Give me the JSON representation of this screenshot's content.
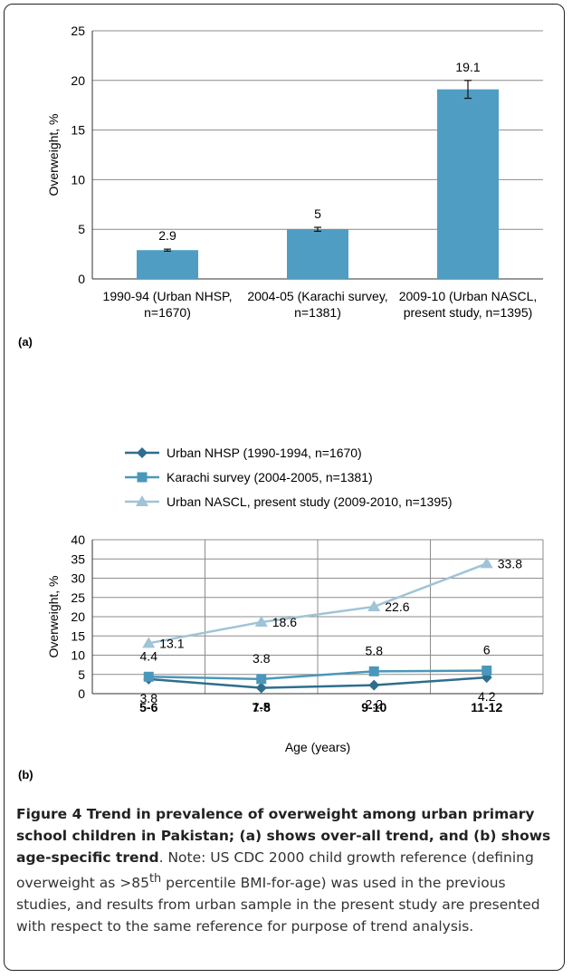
{
  "chart_data": [
    {
      "type": "bar",
      "panel_label": "(a)",
      "categories": [
        [
          "1990-94 (Urban NHSP,",
          "n=1670)"
        ],
        [
          "2004-05 (Karachi survey,",
          "n=1381)"
        ],
        [
          "2009-10 (Urban NASCL,",
          "present study, n=1395)"
        ]
      ],
      "values": [
        2.9,
        5,
        19.1
      ],
      "value_labels": [
        "2.9",
        "5",
        "19.1"
      ],
      "error_bars": [
        [
          2.8,
          3.0
        ],
        [
          4.8,
          5.2
        ],
        [
          18.2,
          20.0
        ]
      ],
      "ylabel": "Overweight, %",
      "ylim": [
        0,
        25
      ],
      "yticks": [
        "0",
        "5",
        "10",
        "15",
        "20",
        "25"
      ],
      "grid": "horizontal",
      "bar_color": "#4f9dc2"
    },
    {
      "type": "line",
      "panel_label": "(b)",
      "categories": [
        "5-6",
        "7-8",
        "9-10",
        "11-12"
      ],
      "xlabel": "Age (years)",
      "ylabel": "Overweight, %",
      "ylim": [
        0,
        40
      ],
      "yticks": [
        "0",
        "5",
        "10",
        "15",
        "20",
        "25",
        "30",
        "35",
        "40"
      ],
      "grid": "both",
      "legend_position": "top",
      "series": [
        {
          "name": "Urban NHSP (1990-1994, n=1670)",
          "values": [
            3.8,
            1.5,
            2.2,
            4.2
          ],
          "labels": [
            "3.8",
            "1.5",
            "2.2",
            "4.2"
          ],
          "marker": "diamond",
          "color": "#2f6e8d"
        },
        {
          "name": "Karachi survey (2004-2005, n=1381)",
          "values": [
            4.4,
            3.8,
            5.8,
            6
          ],
          "labels": [
            "4.4",
            "3.8",
            "5.8",
            "6"
          ],
          "marker": "square",
          "color": "#4a97bb"
        },
        {
          "name": "Urban NASCL, present study (2009-2010, n=1395)",
          "values": [
            13.1,
            18.6,
            22.6,
            33.8
          ],
          "labels": [
            "13.1",
            "18.6",
            "22.6",
            "33.8"
          ],
          "marker": "triangle",
          "color": "#9fc4d6"
        }
      ]
    }
  ],
  "caption": {
    "title": "Figure 4 Trend in prevalence of overweight among urban primary school children in Pakistan; (a) shows over-all trend, and (b) shows age-specific trend",
    "note_before": ". Note: US CDC 2000 child growth reference (defining overweight as >85",
    "note_sup": "th",
    "note_after": " percentile BMI-for-age) was used in the previous studies, and results from urban sample in the present study are presented with respect to the same reference for purpose of trend analysis."
  }
}
